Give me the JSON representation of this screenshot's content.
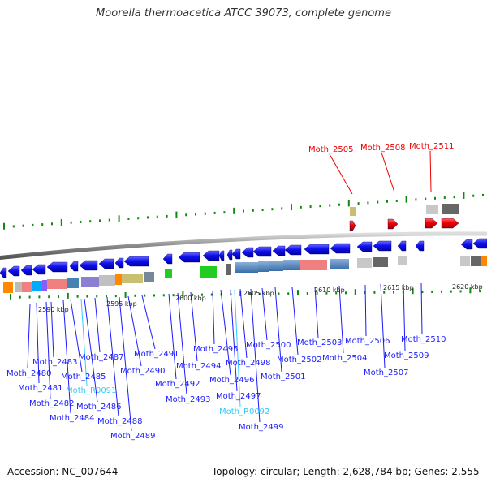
{
  "title": "Moorella thermoacetica ATCC 39073, complete genome",
  "footer": {
    "accession": "Accession: NC_007644",
    "summary": "Topology: circular; Length: 2,628,784 bp; Genes: 2,555"
  },
  "colors": {
    "protein_gene": "#1a1aff",
    "rna_gene": "#33ccff",
    "highlight_gene": "#ee0000",
    "backbone": "#888888",
    "tick": "#118811"
  },
  "scale_ticks": [
    "2590 kbp",
    "2595 kbp",
    "2600 kbp",
    "2605 kbp",
    "2610 kbp",
    "2615 kbp",
    "2620 kbp"
  ],
  "genes": [
    {
      "name": "Moth_2480",
      "type": "protein"
    },
    {
      "name": "Moth_2481",
      "type": "protein"
    },
    {
      "name": "Moth_2482",
      "type": "protein"
    },
    {
      "name": "Moth_2483",
      "type": "protein"
    },
    {
      "name": "Moth_2484",
      "type": "protein"
    },
    {
      "name": "Moth_2485",
      "type": "protein"
    },
    {
      "name": "Moth_R0091",
      "type": "rna"
    },
    {
      "name": "Moth_2486",
      "type": "protein"
    },
    {
      "name": "Moth_2487",
      "type": "protein"
    },
    {
      "name": "Moth_2488",
      "type": "protein"
    },
    {
      "name": "Moth_2489",
      "type": "protein"
    },
    {
      "name": "Moth_2490",
      "type": "protein"
    },
    {
      "name": "Moth_2491",
      "type": "protein"
    },
    {
      "name": "Moth_2492",
      "type": "protein"
    },
    {
      "name": "Moth_2493",
      "type": "protein"
    },
    {
      "name": "Moth_2494",
      "type": "protein"
    },
    {
      "name": "Moth_2495",
      "type": "protein"
    },
    {
      "name": "Moth_2496",
      "type": "protein"
    },
    {
      "name": "Moth_2497",
      "type": "protein"
    },
    {
      "name": "Moth_R0092",
      "type": "rna"
    },
    {
      "name": "Moth_2498",
      "type": "protein"
    },
    {
      "name": "Moth_2499",
      "type": "protein"
    },
    {
      "name": "Moth_2500",
      "type": "protein"
    },
    {
      "name": "Moth_2501",
      "type": "protein"
    },
    {
      "name": "Moth_2502",
      "type": "protein"
    },
    {
      "name": "Moth_2503",
      "type": "protein"
    },
    {
      "name": "Moth_2504",
      "type": "protein"
    },
    {
      "name": "Moth_2506",
      "type": "protein"
    },
    {
      "name": "Moth_2507",
      "type": "protein"
    },
    {
      "name": "Moth_2509",
      "type": "protein"
    },
    {
      "name": "Moth_2510",
      "type": "protein"
    },
    {
      "name": "Moth_2505",
      "type": "highlight"
    },
    {
      "name": "Moth_2508",
      "type": "highlight"
    },
    {
      "name": "Moth_2511",
      "type": "highlight"
    }
  ]
}
